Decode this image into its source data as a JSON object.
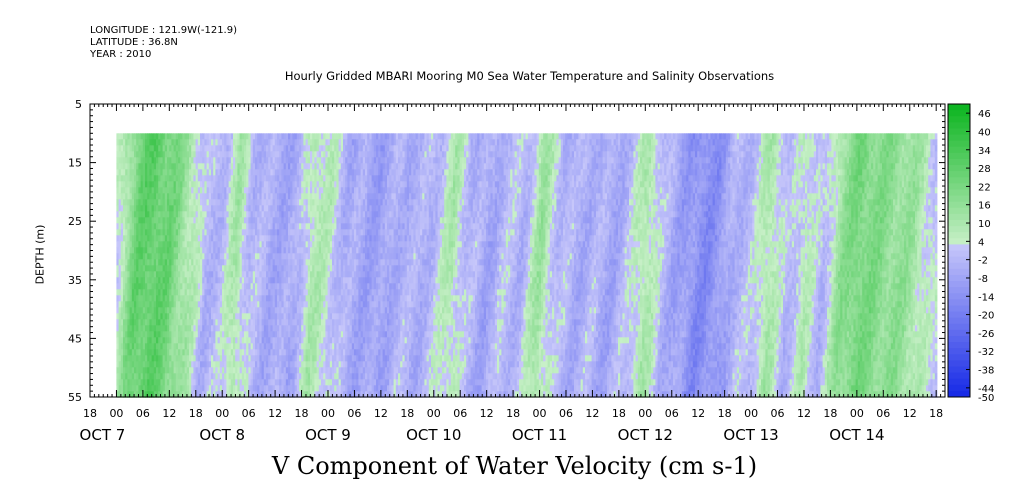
{
  "header": {
    "longitude": "LONGITUDE : 121.9W(-121.9)",
    "latitude": "LATITUDE : 36.8N",
    "year": "YEAR : 2010"
  },
  "chart_data": {
    "type": "heatmap",
    "title": "Hourly Gridded MBARI Mooring M0 Sea Water Temperature and Salinity Observations",
    "variable_title": "V Component of Water Velocity (cm s-1)",
    "ylabel": "DEPTH (m)",
    "y_range": [
      5,
      55
    ],
    "y_inverted": true,
    "y_ticks": [
      5,
      15,
      25,
      35,
      45,
      55
    ],
    "x_range_hours": "2010-10-06T18:00 to 2010-10-14T20:00",
    "hour_ticks": [
      "18",
      "00",
      "06",
      "12",
      "18",
      "00",
      "06",
      "12",
      "18",
      "00",
      "06",
      "12",
      "18",
      "00",
      "06",
      "12",
      "18",
      "00",
      "06",
      "12",
      "18",
      "00",
      "06",
      "12",
      "18",
      "00",
      "06",
      "12",
      "18",
      "00",
      "06",
      "12",
      "18"
    ],
    "day_labels": [
      {
        "label": "OCT  7",
        "day": 7
      },
      {
        "label": "OCT  8",
        "day": 8
      },
      {
        "label": "OCT  9",
        "day": 9
      },
      {
        "label": "OCT 10",
        "day": 10
      },
      {
        "label": "OCT 11",
        "day": 11
      },
      {
        "label": "OCT 12",
        "day": 12
      },
      {
        "label": "OCT 13",
        "day": 13
      },
      {
        "label": "OCT 14",
        "day": 14
      }
    ],
    "data_depth_range": [
      10,
      55
    ],
    "colorbar": {
      "labels": [
        "46",
        "40",
        "34",
        "28",
        "22",
        "16",
        "10",
        "4",
        "-2",
        "-8",
        "-14",
        "-20",
        "-26",
        "-32",
        "-38",
        "-44",
        "-50"
      ],
      "positive_color": "#22dd44",
      "negative_color": "#1a33dd",
      "zero_color": "#ccccff"
    },
    "pattern_by_day": [
      {
        "day": "Oct 7",
        "sign": "positive",
        "strength": "strong near 06-12, surface to bottom"
      },
      {
        "day": "Oct 8",
        "sign": "negative",
        "strength": "weak, with positive streak at 06-12 mid-depth"
      },
      {
        "day": "Oct 9",
        "sign": "negative",
        "strength": "moderate, positive near 06 and 23"
      },
      {
        "day": "Oct 10",
        "sign": "mixed",
        "strength": "positive near 00 and 18, negative mid-day"
      },
      {
        "day": "Oct 11",
        "sign": "mixed",
        "strength": "positive near 06, negative near 18"
      },
      {
        "day": "Oct 12",
        "sign": "negative",
        "strength": "strongest near 18 at depth ~45 m"
      },
      {
        "day": "Oct 13",
        "sign": "mixed",
        "strength": "positive bands near 00 and 18"
      },
      {
        "day": "Oct 14",
        "sign": "positive",
        "strength": "strong positive 00-12"
      }
    ]
  }
}
